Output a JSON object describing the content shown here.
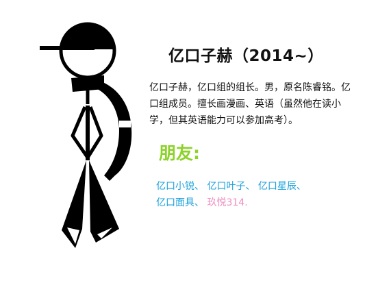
{
  "profile": {
    "title": "亿口子赫（2014~）",
    "description": "亿口子赫，亿口组的组长。男，原名陈睿铭。亿口组成员。擅长画漫画、英语（虽然他在读小学，但其英语能力可以参加高考）。"
  },
  "friends": {
    "heading": "朋友:",
    "items": [
      {
        "name": "亿口小锐",
        "sep": "、"
      },
      {
        "name": "亿口叶子",
        "sep": "、"
      },
      {
        "name": "亿口星辰",
        "sep": "、"
      },
      {
        "name": "亿口面具",
        "sep": "、"
      },
      {
        "name": "玖悦314",
        "sep": "."
      }
    ]
  },
  "colors": {
    "heading": "#8cd22a",
    "friend_link": "#19a0dc",
    "friend_highlight": "#f08cc0",
    "text": "#111111"
  },
  "icons": {
    "figure": "stick-figure-with-cap-and-scarf-icon"
  }
}
